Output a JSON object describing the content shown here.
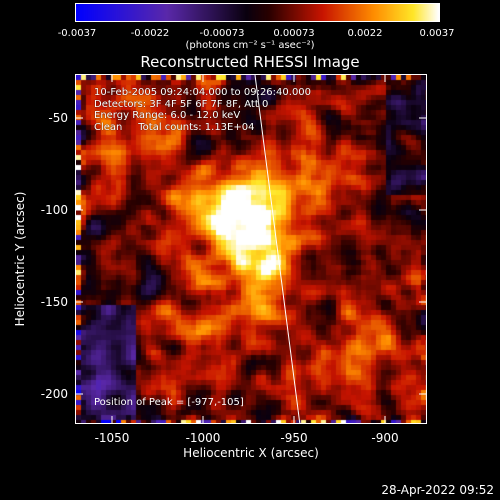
{
  "colorbar": {
    "tick_labels": [
      "-0.0037",
      "-0.0022",
      "-0.00073",
      "0.00073",
      "0.0022",
      "0.0037"
    ],
    "units_label": "(photons cm⁻² s⁻¹ asec⁻²)"
  },
  "plot": {
    "title": "Reconstructed RHESSI Image",
    "annotations": [
      "10-Feb-2005 09:24:04.000 to 09:26:40.000",
      "Detectors: 3F 4F 5F 6F 7F 8F, Att 0",
      "Energy Range: 6.0 - 12.0 keV",
      "Clean     Total counts: 1.13E+04"
    ],
    "peak_label": "Position of Peak = [-977,-105]",
    "xlabel": "Heliocentric X (arcsec)",
    "ylabel": "Heliocentric Y (arcsec)",
    "x_ticks": [
      "-1050",
      "-1000",
      "-950",
      "-900"
    ],
    "y_ticks": [
      "-50",
      "-100",
      "-150",
      "-200"
    ],
    "x_range": [
      -1070,
      -877
    ],
    "y_range": [
      -28,
      -219
    ]
  },
  "footer": {
    "timestamp": "28-Apr-2022 09:52"
  },
  "colors": {
    "background": "#000000",
    "colormap": "blue-purple-black-red-orange-yellow-white"
  }
}
